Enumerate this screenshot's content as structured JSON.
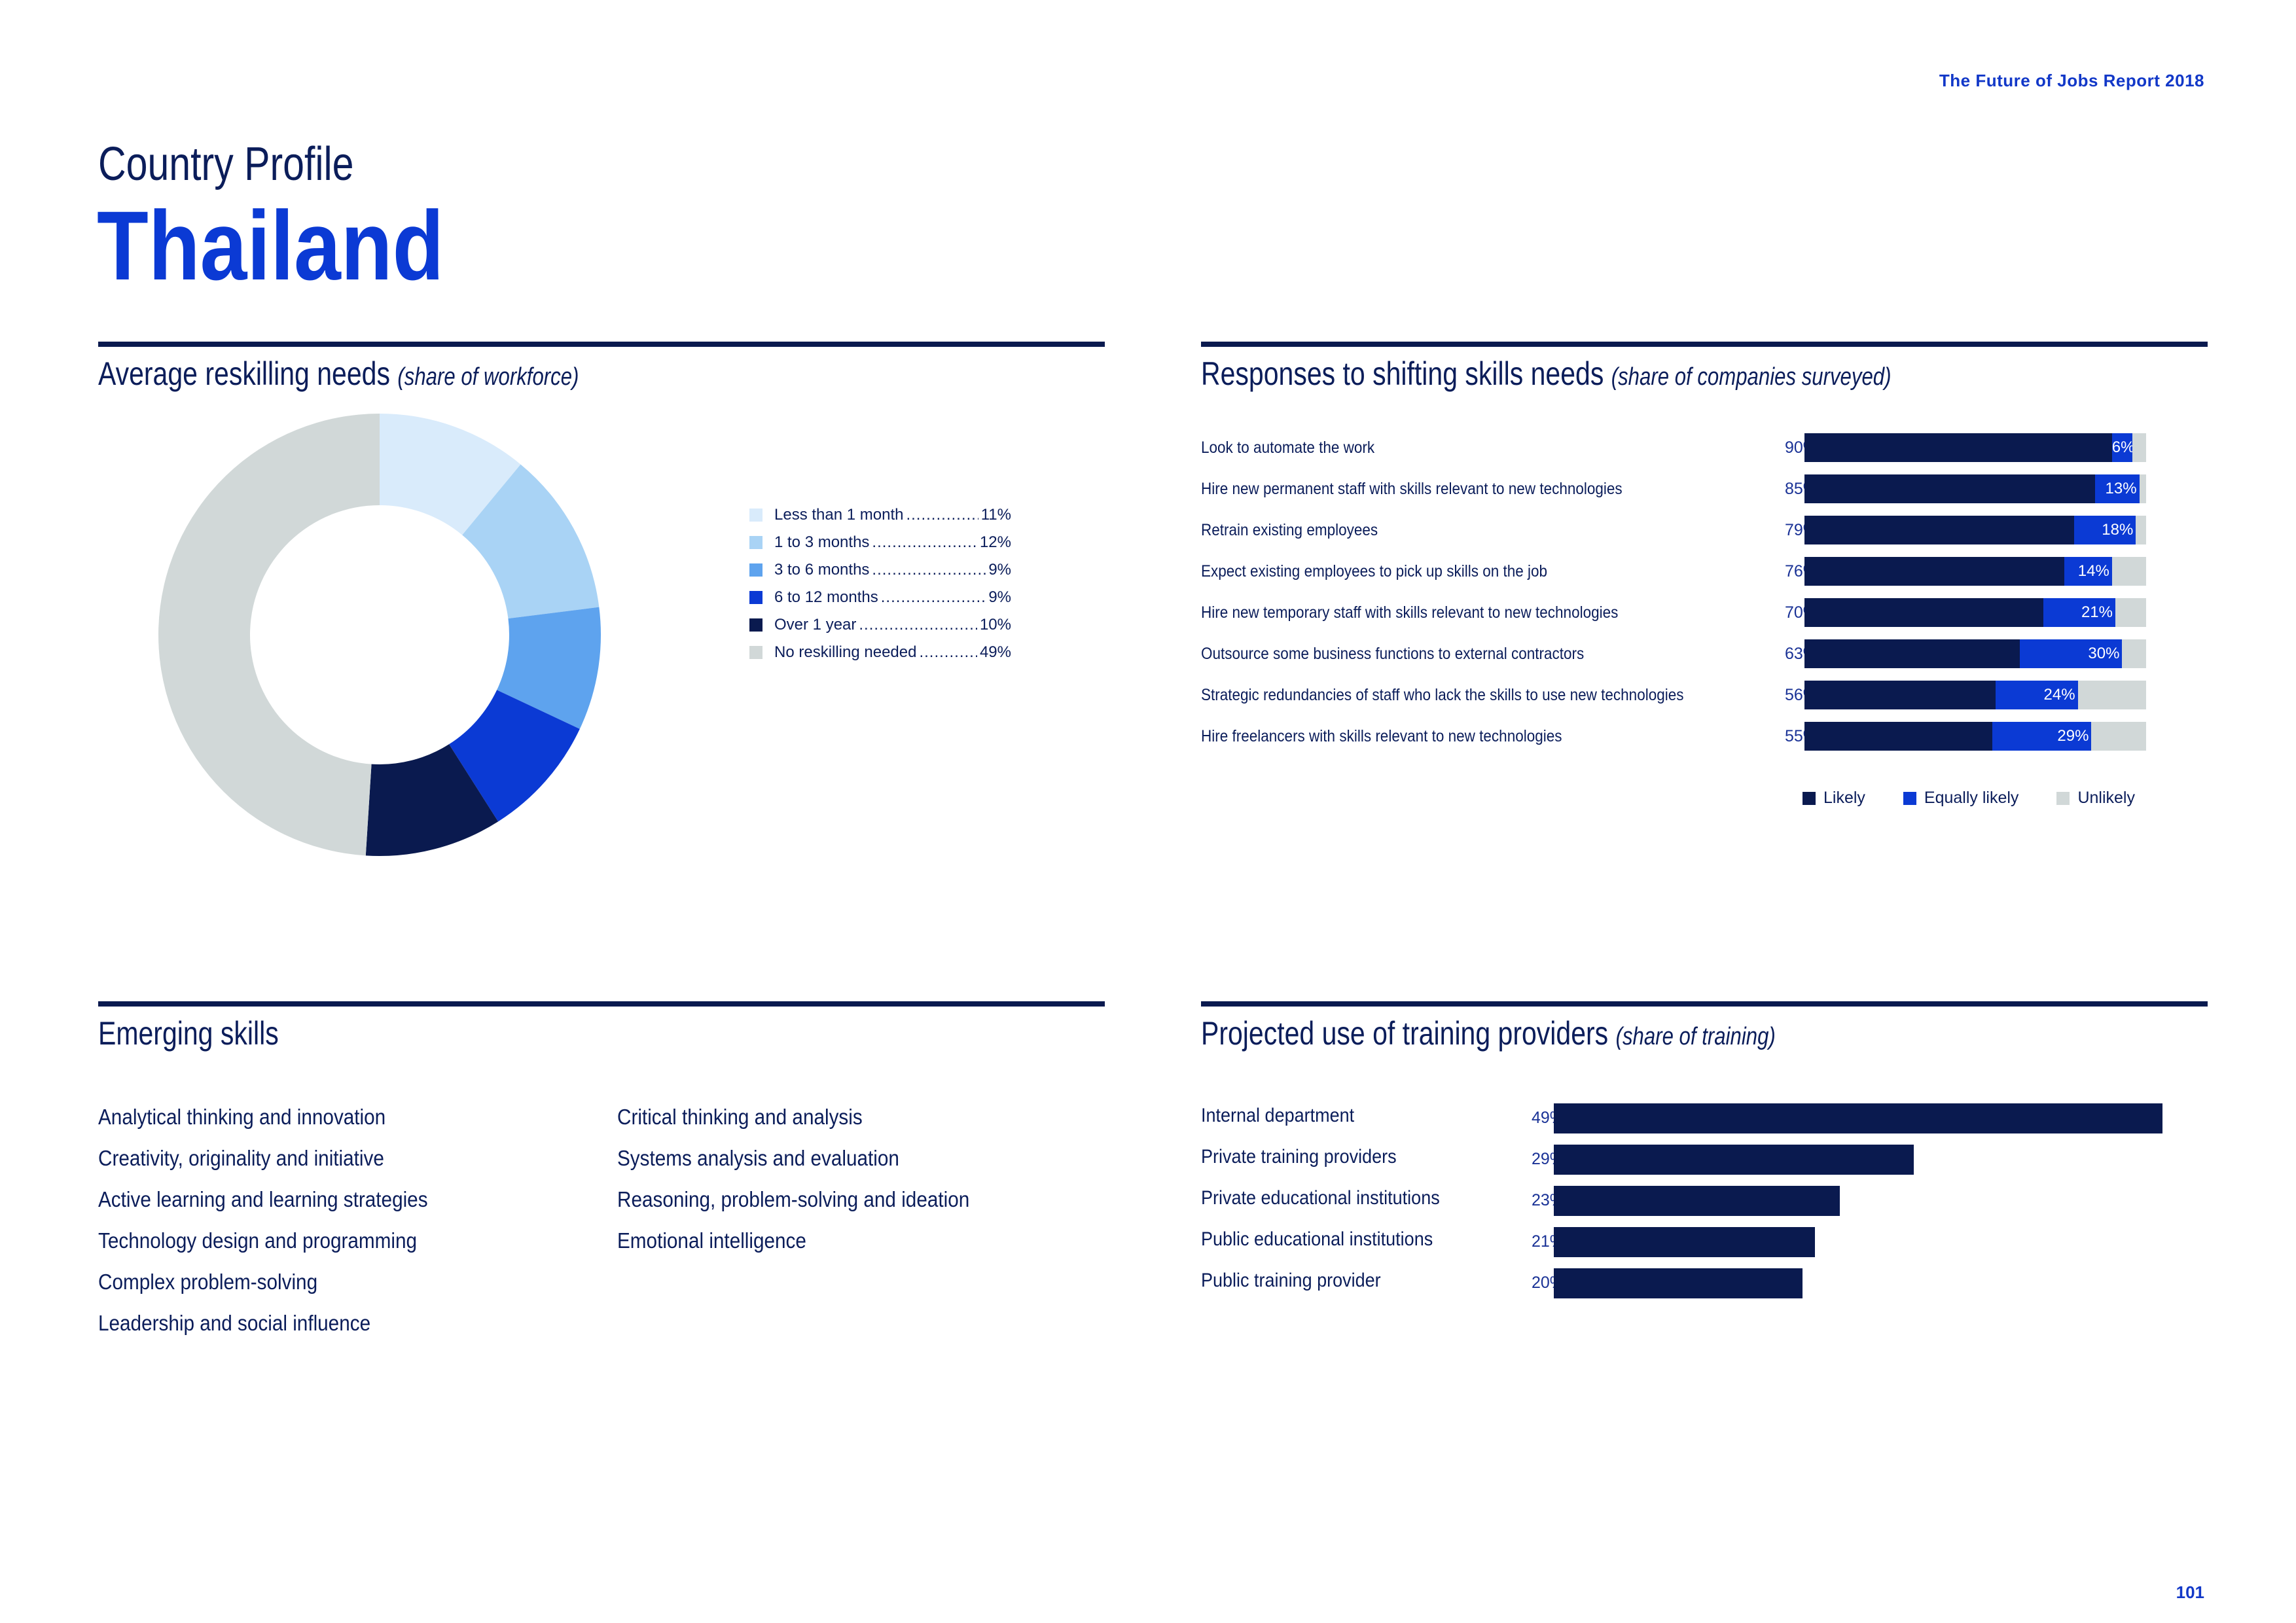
{
  "header": {
    "report_title": "The Future of Jobs Report 2018",
    "page_number": "101"
  },
  "profile": {
    "label": "Country Profile",
    "country": "Thailand"
  },
  "colors": {
    "navy": "#0a1a4f",
    "blue": "#0b3ad4",
    "mid_blue": "#5ea3ee",
    "light_blue": "#a9d3f5",
    "pale_blue": "#d9ebfb",
    "grey": "#d1d8d8"
  },
  "reskilling": {
    "title": "Average reskilling needs",
    "subtitle": "(share of workforce)"
  },
  "responses": {
    "title": "Responses to shifting skills needs",
    "subtitle": "(share of companies surveyed)"
  },
  "emerging": {
    "title": "Emerging skills",
    "col1": [
      "Analytical thinking and innovation",
      "Creativity, originality and initiative",
      "Active learning and learning strategies",
      "Technology design and programming",
      "Complex problem-solving",
      "Leadership and social influence"
    ],
    "col2": [
      "Critical thinking and analysis",
      "Systems analysis and evaluation",
      "Reasoning, problem-solving and ideation",
      "Emotional intelligence"
    ]
  },
  "training": {
    "title": "Projected use of training providers",
    "subtitle": "(share of training)"
  },
  "chart_data": [
    {
      "type": "pie",
      "title": "Average reskilling needs (share of workforce)",
      "categories": [
        "Less than 1 month",
        "1 to 3 months",
        "3 to 6 months",
        "6 to 12 months",
        "Over 1 year",
        "No reskilling needed"
      ],
      "values": [
        11,
        12,
        9,
        9,
        10,
        49
      ],
      "labels": [
        "11%",
        "12%",
        "9%",
        "9%",
        "10%",
        "49%"
      ],
      "colors": [
        "#d9ebfb",
        "#a9d3f5",
        "#5ea3ee",
        "#0b3ad4",
        "#0a1a4f",
        "#d1d8d8"
      ],
      "legend": "right"
    },
    {
      "type": "bar",
      "orientation": "horizontal",
      "stacked": true,
      "title": "Responses to shifting skills needs (share of companies surveyed)",
      "categories": [
        "Look to automate the work",
        "Hire new permanent staff with skills relevant to new technologies",
        "Retrain existing employees",
        "Expect existing employees to pick up skills on the job",
        "Hire new temporary staff with skills relevant to new technologies",
        "Outsource some business functions to external contractors",
        "Strategic redundancies of staff who lack the skills to use new technologies",
        "Hire freelancers with skills relevant to new technologies"
      ],
      "series": [
        {
          "name": "Likely",
          "color": "#0a1a4f",
          "values": [
            90,
            85,
            79,
            76,
            70,
            63,
            56,
            55
          ],
          "labels": [
            "90%",
            "85%",
            "79%",
            "76%",
            "70%",
            "63%",
            "56%",
            "55%"
          ]
        },
        {
          "name": "Equally likely",
          "color": "#0b3ad4",
          "values": [
            6,
            13,
            18,
            14,
            21,
            30,
            24,
            29
          ],
          "labels": [
            "6%",
            "13%",
            "18%",
            "14%",
            "21%",
            "30%",
            "24%",
            "29%"
          ]
        },
        {
          "name": "Unlikely",
          "color": "#d1d8d8",
          "values": [
            4,
            2,
            3,
            10,
            9,
            7,
            20,
            16
          ]
        }
      ],
      "xlim": [
        0,
        100
      ],
      "legend": "bottom"
    },
    {
      "type": "bar",
      "orientation": "horizontal",
      "title": "Projected use of training providers (share of training)",
      "categories": [
        "Internal department",
        "Private training providers",
        "Private educational institutions",
        "Public educational institutions",
        "Public training provider"
      ],
      "values": [
        49,
        29,
        23,
        21,
        20
      ],
      "labels": [
        "49%",
        "29%",
        "23%",
        "21%",
        "20%"
      ],
      "color": "#0a1a4f",
      "xlim": [
        0,
        50
      ]
    }
  ]
}
